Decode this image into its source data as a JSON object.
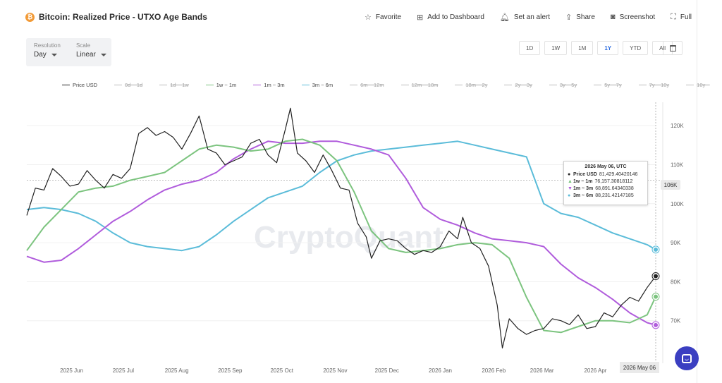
{
  "header": {
    "title": "Bitcoin: Realized Price - UTXO Age Bands",
    "coin_icon": "bitcoin-icon",
    "actions": [
      {
        "label": "Favorite",
        "icon": "star-icon"
      },
      {
        "label": "Add to Dashboard",
        "icon": "dashboard-add-icon"
      },
      {
        "label": "Set an alert",
        "icon": "bell-icon"
      },
      {
        "label": "Share",
        "icon": "share-icon"
      },
      {
        "label": "Screenshot",
        "icon": "camera-icon"
      },
      {
        "label": "Full",
        "icon": "fullscreen-icon"
      }
    ]
  },
  "controls": {
    "resolution_label": "Resolution",
    "resolution_value": "Day",
    "scale_label": "Scale",
    "scale_value": "Linear"
  },
  "ranges": [
    "1D",
    "1W",
    "1M",
    "1Y",
    "YTD",
    "All"
  ],
  "active_range": "1Y",
  "watermark": "CryptoQuant",
  "tooltip": {
    "date": "2026 May 06, UTC",
    "rows": [
      {
        "marker": "●",
        "name": "Price USD",
        "value": "81,429.40420146",
        "color": "#222222"
      },
      {
        "marker": "▲",
        "name": "1w ~ 1m",
        "value": "76,157.30818112",
        "color": "#7cc47f"
      },
      {
        "marker": "▼",
        "name": "1m ~ 3m",
        "value": "68,891.64340338",
        "color": "#b05cdc"
      },
      {
        "marker": "●",
        "name": "3m ~ 6m",
        "value": "88,231.42147185",
        "color": "#5bbcd9"
      }
    ]
  },
  "crosshair": {
    "price_label": "106K",
    "date_label": "2026 May 06",
    "price": 106000
  },
  "chart_data": {
    "type": "line",
    "title": "Bitcoin: Realized Price - UTXO Age Bands",
    "x_ticks": [
      "2025 Jun",
      "2025 Jul",
      "2025 Aug",
      "2025 Sep",
      "2025 Oct",
      "2025 Nov",
      "2025 Dec",
      "2026 Jan",
      "2026 Feb",
      "2026 Mar",
      "2026 Apr"
    ],
    "x_range": [
      "2025-05-06",
      "2026-05-06"
    ],
    "y_ticks": [
      70000,
      80000,
      90000,
      100000,
      110000,
      120000
    ],
    "y_tick_labels": [
      "70K",
      "80K",
      "90K",
      "100K",
      "110K",
      "120K"
    ],
    "ylim": [
      60000,
      126000
    ],
    "grid": "horizontal",
    "legend_position": "top",
    "legend": [
      {
        "name": "Price USD",
        "color": "#222222",
        "active": true
      },
      {
        "name": "0d ~ 1d",
        "color": "#bbbbbb",
        "active": false
      },
      {
        "name": "1d ~ 1w",
        "color": "#bbbbbb",
        "active": false
      },
      {
        "name": "1w ~ 1m",
        "color": "#7cc47f",
        "active": true
      },
      {
        "name": "1m ~ 3m",
        "color": "#b05cdc",
        "active": true
      },
      {
        "name": "3m ~ 6m",
        "color": "#5bbcd9",
        "active": true
      },
      {
        "name": "6m ~ 12m",
        "color": "#bbbbbb",
        "active": false
      },
      {
        "name": "12m ~ 18m",
        "color": "#bbbbbb",
        "active": false
      },
      {
        "name": "18m ~ 2y",
        "color": "#bbbbbb",
        "active": false
      },
      {
        "name": "2y ~ 3y",
        "color": "#bbbbbb",
        "active": false
      },
      {
        "name": "3y ~ 5y",
        "color": "#bbbbbb",
        "active": false
      },
      {
        "name": "5y ~ 7y",
        "color": "#bbbbbb",
        "active": false
      },
      {
        "name": "7y ~ 10y",
        "color": "#bbbbbb",
        "active": false
      },
      {
        "name": "10y ~",
        "color": "#bbbbbb",
        "active": false
      }
    ],
    "series": [
      {
        "name": "Price USD",
        "color": "#222222",
        "x": [
          "2025-05-06",
          "2025-05-11",
          "2025-05-16",
          "2025-05-21",
          "2025-05-26",
          "2025-05-31",
          "2025-06-05",
          "2025-06-10",
          "2025-06-15",
          "2025-06-20",
          "2025-06-25",
          "2025-06-30",
          "2025-07-05",
          "2025-07-10",
          "2025-07-15",
          "2025-07-20",
          "2025-07-25",
          "2025-07-30",
          "2025-08-04",
          "2025-08-09",
          "2025-08-14",
          "2025-08-19",
          "2025-08-24",
          "2025-08-29",
          "2025-09-03",
          "2025-09-08",
          "2025-09-13",
          "2025-09-18",
          "2025-09-23",
          "2025-09-28",
          "2025-10-03",
          "2025-10-06",
          "2025-10-10",
          "2025-10-15",
          "2025-10-20",
          "2025-10-25",
          "2025-10-30",
          "2025-11-04",
          "2025-11-09",
          "2025-11-14",
          "2025-11-19",
          "2025-11-22",
          "2025-11-27",
          "2025-12-02",
          "2025-12-07",
          "2025-12-12",
          "2025-12-17",
          "2025-12-22",
          "2025-12-27",
          "2026-01-01",
          "2026-01-06",
          "2026-01-11",
          "2026-01-14",
          "2026-01-19",
          "2026-01-24",
          "2026-01-29",
          "2026-02-03",
          "2026-02-06",
          "2026-02-10",
          "2026-02-15",
          "2026-02-20",
          "2026-02-25",
          "2026-03-02",
          "2026-03-07",
          "2026-03-12",
          "2026-03-17",
          "2026-03-22",
          "2026-03-27",
          "2026-04-01",
          "2026-04-06",
          "2026-04-11",
          "2026-04-16",
          "2026-04-21",
          "2026-04-26",
          "2026-05-01",
          "2026-05-06"
        ],
        "values": [
          97000,
          104000,
          103500,
          109000,
          107000,
          104500,
          105000,
          108500,
          106000,
          104000,
          107500,
          106500,
          109000,
          118000,
          119500,
          117500,
          118500,
          117000,
          114000,
          118000,
          122500,
          114000,
          113000,
          110000,
          111000,
          112000,
          115500,
          116500,
          112500,
          110500,
          119000,
          124500,
          113000,
          111000,
          108000,
          112500,
          108500,
          104000,
          103500,
          95000,
          91500,
          86000,
          90500,
          91000,
          90500,
          88500,
          87000,
          88000,
          87500,
          89000,
          93000,
          91000,
          96500,
          90000,
          88500,
          84000,
          74000,
          63000,
          70500,
          68000,
          66500,
          67500,
          68000,
          70500,
          70000,
          69000,
          71500,
          68000,
          68500,
          72000,
          71000,
          74000,
          76000,
          75000,
          78500,
          81429
        ]
      },
      {
        "name": "1w ~ 1m",
        "color": "#7cc47f",
        "x": [
          "2025-05-06",
          "2025-05-16",
          "2025-05-26",
          "2025-06-05",
          "2025-06-15",
          "2025-06-25",
          "2025-07-05",
          "2025-07-15",
          "2025-07-25",
          "2025-08-04",
          "2025-08-14",
          "2025-08-24",
          "2025-09-03",
          "2025-09-13",
          "2025-09-23",
          "2025-10-03",
          "2025-10-13",
          "2025-10-23",
          "2025-11-02",
          "2025-11-12",
          "2025-11-22",
          "2025-12-02",
          "2025-12-12",
          "2025-12-22",
          "2026-01-01",
          "2026-01-11",
          "2026-01-21",
          "2026-01-31",
          "2026-02-10",
          "2026-02-20",
          "2026-03-02",
          "2026-03-12",
          "2026-03-22",
          "2026-04-01",
          "2026-04-11",
          "2026-04-21",
          "2026-05-01",
          "2026-05-06"
        ],
        "values": [
          88000,
          94000,
          98500,
          103000,
          104000,
          104500,
          106000,
          107000,
          108000,
          111000,
          114000,
          115000,
          114500,
          113500,
          114000,
          116000,
          116500,
          115000,
          111000,
          103000,
          93000,
          88500,
          87500,
          88000,
          88500,
          89500,
          90000,
          89500,
          86000,
          76000,
          67500,
          67000,
          68500,
          70000,
          70000,
          69500,
          71500,
          76157
        ]
      },
      {
        "name": "1m ~ 3m",
        "color": "#b05cdc",
        "x": [
          "2025-05-06",
          "2025-05-16",
          "2025-05-26",
          "2025-06-05",
          "2025-06-15",
          "2025-06-25",
          "2025-07-05",
          "2025-07-15",
          "2025-07-25",
          "2025-08-04",
          "2025-08-14",
          "2025-08-24",
          "2025-09-03",
          "2025-09-13",
          "2025-09-23",
          "2025-10-03",
          "2025-10-13",
          "2025-10-23",
          "2025-11-02",
          "2025-11-12",
          "2025-11-22",
          "2025-12-02",
          "2025-12-12",
          "2025-12-22",
          "2026-01-01",
          "2026-01-11",
          "2026-01-21",
          "2026-01-31",
          "2026-02-10",
          "2026-02-20",
          "2026-03-02",
          "2026-03-12",
          "2026-03-22",
          "2026-04-01",
          "2026-04-11",
          "2026-04-21",
          "2026-05-01",
          "2026-05-06"
        ],
        "values": [
          86500,
          85000,
          85500,
          88500,
          92000,
          95500,
          98000,
          101000,
          103500,
          105000,
          106000,
          108000,
          111500,
          114000,
          116000,
          115500,
          115500,
          116000,
          116000,
          115000,
          114000,
          112500,
          106500,
          99000,
          96000,
          94500,
          92500,
          91000,
          90500,
          90000,
          89000,
          84500,
          81000,
          78500,
          75500,
          72000,
          69500,
          68892
        ]
      },
      {
        "name": "3m ~ 6m",
        "color": "#5bbcd9",
        "x": [
          "2025-05-06",
          "2025-05-16",
          "2025-05-26",
          "2025-06-05",
          "2025-06-15",
          "2025-06-25",
          "2025-07-05",
          "2025-07-15",
          "2025-07-25",
          "2025-08-04",
          "2025-08-14",
          "2025-08-24",
          "2025-09-03",
          "2025-09-13",
          "2025-09-23",
          "2025-10-03",
          "2025-10-13",
          "2025-10-23",
          "2025-11-02",
          "2025-11-12",
          "2025-11-22",
          "2025-12-02",
          "2025-12-12",
          "2025-12-22",
          "2026-01-01",
          "2026-01-11",
          "2026-01-21",
          "2026-01-31",
          "2026-02-10",
          "2026-02-20",
          "2026-03-02",
          "2026-03-12",
          "2026-03-22",
          "2026-04-01",
          "2026-04-11",
          "2026-04-21",
          "2026-05-01",
          "2026-05-06"
        ],
        "values": [
          98500,
          99000,
          98500,
          97500,
          95500,
          92500,
          90000,
          89000,
          88500,
          88000,
          89000,
          92000,
          95500,
          98500,
          101500,
          103000,
          104500,
          108000,
          111000,
          112500,
          113500,
          114000,
          114500,
          115000,
          115500,
          116000,
          115000,
          114000,
          113000,
          112000,
          100000,
          97500,
          96500,
          94500,
          92500,
          91000,
          89500,
          88231
        ]
      }
    ]
  }
}
